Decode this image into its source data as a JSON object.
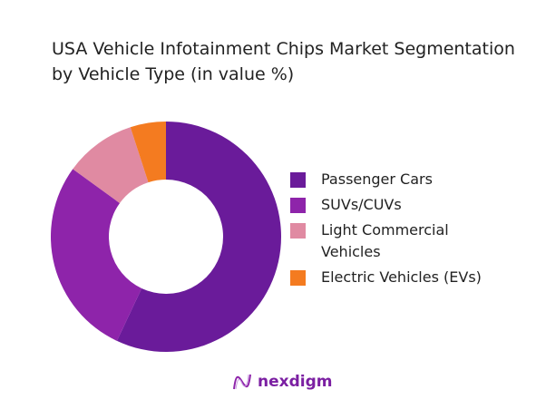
{
  "chart_data": {
    "type": "pie",
    "title": "USA Vehicle Infotainment Chips Market Segmentation by Vehicle Type (in value %)",
    "donut": true,
    "legend_position": "right",
    "categories": [
      "Passenger Cars",
      "SUVs/CUVs",
      "Light Commercial Vehicles",
      "Electric Vehicles (EVs)"
    ],
    "values": [
      57,
      28,
      10,
      5
    ],
    "colors": [
      "#6a1b9a",
      "#8e24aa",
      "#e08aa2",
      "#f47b20"
    ]
  },
  "brand": {
    "name": "nexdigm"
  }
}
